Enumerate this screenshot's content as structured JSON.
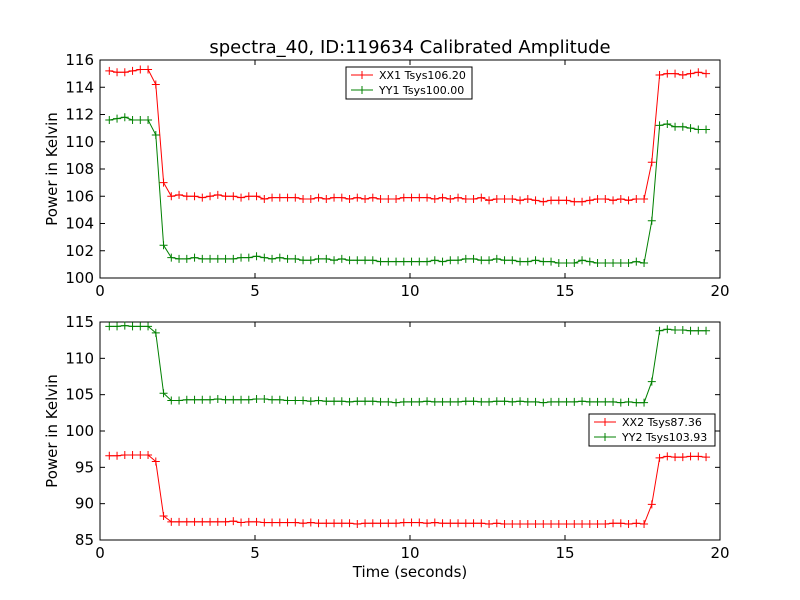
{
  "figure": {
    "title": "spectra_40, ID:119634 Calibrated Amplitude"
  },
  "chart_data": [
    {
      "type": "line",
      "title": "spectra_40, ID:119634 Calibrated Amplitude",
      "xlabel": "",
      "ylabel": "Power in Kelvin",
      "xlim": [
        0,
        20
      ],
      "ylim": [
        100,
        116
      ],
      "xticks": [
        "0",
        "5",
        "10",
        "15",
        "20"
      ],
      "xtick_values": [
        0,
        5,
        10,
        15,
        20
      ],
      "yticks": [
        "100",
        "102",
        "104",
        "106",
        "108",
        "110",
        "112",
        "114",
        "116"
      ],
      "ytick_values": [
        100,
        102,
        104,
        106,
        108,
        110,
        112,
        114,
        116
      ],
      "grid": false,
      "legend_position": "top-center",
      "x": [
        0.3,
        0.55,
        0.8,
        1.05,
        1.3,
        1.55,
        1.8,
        2.05,
        2.3,
        2.55,
        2.8,
        3.05,
        3.3,
        3.55,
        3.8,
        4.05,
        4.3,
        4.55,
        4.8,
        5.05,
        5.3,
        5.55,
        5.8,
        6.05,
        6.3,
        6.55,
        6.8,
        7.05,
        7.3,
        7.55,
        7.8,
        8.05,
        8.3,
        8.55,
        8.8,
        9.05,
        9.3,
        9.55,
        9.8,
        10.05,
        10.3,
        10.55,
        10.8,
        11.05,
        11.3,
        11.55,
        11.8,
        12.05,
        12.3,
        12.55,
        12.8,
        13.05,
        13.3,
        13.55,
        13.8,
        14.05,
        14.3,
        14.55,
        14.8,
        15.05,
        15.3,
        15.55,
        15.8,
        16.05,
        16.3,
        16.55,
        16.8,
        17.05,
        17.3,
        17.55,
        17.8,
        18.05,
        18.3,
        18.55,
        18.8,
        19.05,
        19.3,
        19.55
      ],
      "series": [
        {
          "name": "XX1 Tsys106.20",
          "color": "#ff0000",
          "values": [
            115.2,
            115.1,
            115.1,
            115.2,
            115.3,
            115.3,
            114.2,
            107.0,
            106.0,
            106.1,
            106.0,
            106.0,
            105.9,
            106.0,
            106.1,
            106.0,
            106.0,
            105.9,
            106.0,
            106.0,
            105.8,
            105.9,
            105.9,
            105.9,
            105.9,
            105.8,
            105.8,
            105.9,
            105.8,
            105.9,
            105.9,
            105.8,
            105.9,
            105.8,
            105.9,
            105.8,
            105.8,
            105.8,
            105.9,
            105.9,
            105.9,
            105.9,
            105.8,
            105.9,
            105.8,
            105.9,
            105.8,
            105.8,
            105.9,
            105.7,
            105.8,
            105.8,
            105.8,
            105.7,
            105.8,
            105.7,
            105.6,
            105.7,
            105.7,
            105.7,
            105.6,
            105.6,
            105.7,
            105.8,
            105.8,
            105.7,
            105.8,
            105.7,
            105.8,
            105.8,
            108.5,
            114.9,
            115.0,
            115.0,
            114.9,
            115.0,
            115.1,
            115.0
          ]
        },
        {
          "name": "YY1 Tsys100.00",
          "color": "#008000",
          "values": [
            111.6,
            111.7,
            111.8,
            111.6,
            111.6,
            111.6,
            110.5,
            102.4,
            101.5,
            101.4,
            101.4,
            101.5,
            101.4,
            101.4,
            101.4,
            101.4,
            101.4,
            101.5,
            101.5,
            101.6,
            101.5,
            101.4,
            101.5,
            101.4,
            101.4,
            101.3,
            101.3,
            101.4,
            101.4,
            101.3,
            101.4,
            101.3,
            101.3,
            101.3,
            101.3,
            101.2,
            101.2,
            101.2,
            101.2,
            101.2,
            101.2,
            101.2,
            101.3,
            101.2,
            101.3,
            101.3,
            101.4,
            101.4,
            101.3,
            101.3,
            101.4,
            101.3,
            101.3,
            101.2,
            101.2,
            101.3,
            101.2,
            101.2,
            101.1,
            101.1,
            101.1,
            101.3,
            101.2,
            101.1,
            101.1,
            101.1,
            101.1,
            101.1,
            101.2,
            101.1,
            104.2,
            111.2,
            111.3,
            111.1,
            111.1,
            111.0,
            110.9,
            110.9
          ]
        }
      ]
    },
    {
      "type": "line",
      "title": "",
      "xlabel": "Time (seconds)",
      "ylabel": "Power in Kelvin",
      "xlim": [
        0,
        20
      ],
      "ylim": [
        85,
        115
      ],
      "xticks": [
        "0",
        "5",
        "10",
        "15",
        "20"
      ],
      "xtick_values": [
        0,
        5,
        10,
        15,
        20
      ],
      "yticks": [
        "85",
        "90",
        "95",
        "100",
        "105",
        "110",
        "115"
      ],
      "ytick_values": [
        85,
        90,
        95,
        100,
        105,
        110,
        115
      ],
      "grid": false,
      "legend_position": "center-right",
      "x": [
        0.3,
        0.55,
        0.8,
        1.05,
        1.3,
        1.55,
        1.8,
        2.05,
        2.3,
        2.55,
        2.8,
        3.05,
        3.3,
        3.55,
        3.8,
        4.05,
        4.3,
        4.55,
        4.8,
        5.05,
        5.3,
        5.55,
        5.8,
        6.05,
        6.3,
        6.55,
        6.8,
        7.05,
        7.3,
        7.55,
        7.8,
        8.05,
        8.3,
        8.55,
        8.8,
        9.05,
        9.3,
        9.55,
        9.8,
        10.05,
        10.3,
        10.55,
        10.8,
        11.05,
        11.3,
        11.55,
        11.8,
        12.05,
        12.3,
        12.55,
        12.8,
        13.05,
        13.3,
        13.55,
        13.8,
        14.05,
        14.3,
        14.55,
        14.8,
        15.05,
        15.3,
        15.55,
        15.8,
        16.05,
        16.3,
        16.55,
        16.8,
        17.05,
        17.3,
        17.55,
        17.8,
        18.05,
        18.3,
        18.55,
        18.8,
        19.05,
        19.3,
        19.55
      ],
      "series": [
        {
          "name": "XX2 Tsys87.36",
          "color": "#ff0000",
          "values": [
            96.6,
            96.6,
            96.7,
            96.7,
            96.7,
            96.7,
            95.8,
            88.3,
            87.5,
            87.5,
            87.5,
            87.5,
            87.5,
            87.5,
            87.5,
            87.5,
            87.6,
            87.4,
            87.5,
            87.5,
            87.4,
            87.4,
            87.4,
            87.4,
            87.4,
            87.3,
            87.4,
            87.3,
            87.3,
            87.3,
            87.3,
            87.3,
            87.2,
            87.3,
            87.3,
            87.3,
            87.3,
            87.3,
            87.4,
            87.4,
            87.4,
            87.3,
            87.4,
            87.3,
            87.3,
            87.3,
            87.3,
            87.3,
            87.3,
            87.2,
            87.3,
            87.2,
            87.2,
            87.2,
            87.2,
            87.2,
            87.2,
            87.2,
            87.2,
            87.2,
            87.2,
            87.2,
            87.2,
            87.2,
            87.2,
            87.3,
            87.3,
            87.2,
            87.3,
            87.2,
            89.9,
            96.3,
            96.5,
            96.4,
            96.4,
            96.5,
            96.5,
            96.4
          ]
        },
        {
          "name": "YY2 Tsys103.93",
          "color": "#008000",
          "values": [
            114.4,
            114.4,
            114.5,
            114.4,
            114.4,
            114.4,
            113.5,
            105.2,
            104.2,
            104.2,
            104.3,
            104.3,
            104.3,
            104.3,
            104.4,
            104.3,
            104.3,
            104.3,
            104.3,
            104.4,
            104.4,
            104.3,
            104.3,
            104.2,
            104.2,
            104.2,
            104.1,
            104.2,
            104.1,
            104.1,
            104.1,
            104.0,
            104.1,
            104.1,
            104.1,
            104.0,
            104.0,
            103.9,
            104.0,
            104.0,
            104.0,
            104.1,
            104.0,
            104.0,
            104.0,
            104.0,
            104.1,
            104.1,
            104.0,
            104.0,
            104.1,
            104.1,
            104.0,
            104.1,
            104.0,
            104.0,
            103.9,
            104.0,
            104.0,
            104.0,
            104.0,
            104.1,
            104.0,
            104.0,
            104.0,
            104.0,
            103.9,
            104.0,
            103.9,
            103.9,
            106.8,
            113.8,
            114.0,
            113.9,
            113.9,
            113.8,
            113.8,
            113.8
          ]
        }
      ]
    }
  ]
}
